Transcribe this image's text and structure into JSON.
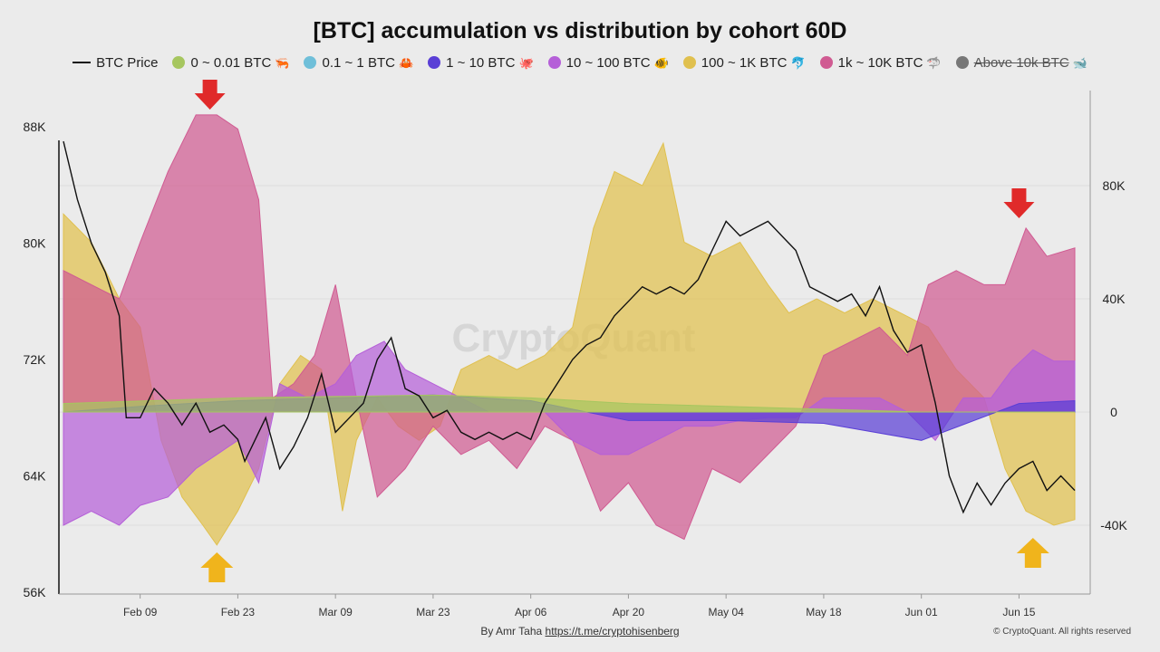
{
  "chart_data": {
    "type": "area",
    "title": "[BTC] accumulation vs distribution by cohort 60D",
    "xlabel": "",
    "ylabel_left": "",
    "ylabel_right": "",
    "x_ticks": [
      "Feb 09",
      "Feb 23",
      "Mar 09",
      "Mar 23",
      "Apr 06",
      "Apr 20",
      "May 04",
      "May 18",
      "Jun 01",
      "Jun 15"
    ],
    "x_range": [
      "2025-01-29",
      "2025-06-23"
    ],
    "y_left_ticks": [
      "88K",
      "80K",
      "72K",
      "64K",
      "56K"
    ],
    "y_left_range": [
      56000,
      88000
    ],
    "y_right_ticks": [
      "80K",
      "40K",
      "0",
      "-40K"
    ],
    "y_right_range": [
      -52000,
      88000
    ],
    "grid": "horizontal",
    "legend_position": "top",
    "watermark": "CryptoQuant",
    "price_series": {
      "name": "BTC Price",
      "color": "#111111",
      "points": [
        [
          "2025-01-29",
          87000
        ],
        [
          "2025-01-31",
          83000
        ],
        [
          "2025-02-02",
          80000
        ],
        [
          "2025-02-04",
          78000
        ],
        [
          "2025-02-06",
          75000
        ],
        [
          "2025-02-07",
          68000
        ],
        [
          "2025-02-09",
          68000
        ],
        [
          "2025-02-11",
          70000
        ],
        [
          "2025-02-13",
          69000
        ],
        [
          "2025-02-15",
          67500
        ],
        [
          "2025-02-17",
          69000
        ],
        [
          "2025-02-19",
          67000
        ],
        [
          "2025-02-21",
          67500
        ],
        [
          "2025-02-23",
          66500
        ],
        [
          "2025-02-24",
          65000
        ],
        [
          "2025-02-25",
          66000
        ],
        [
          "2025-02-27",
          68000
        ],
        [
          "2025-03-01",
          64500
        ],
        [
          "2025-03-03",
          66000
        ],
        [
          "2025-03-05",
          68000
        ],
        [
          "2025-03-07",
          71000
        ],
        [
          "2025-03-09",
          67000
        ],
        [
          "2025-03-11",
          68000
        ],
        [
          "2025-03-13",
          69000
        ],
        [
          "2025-03-15",
          72000
        ],
        [
          "2025-03-17",
          73500
        ],
        [
          "2025-03-19",
          70000
        ],
        [
          "2025-03-21",
          69500
        ],
        [
          "2025-03-23",
          68000
        ],
        [
          "2025-03-25",
          68500
        ],
        [
          "2025-03-27",
          67000
        ],
        [
          "2025-03-29",
          66500
        ],
        [
          "2025-03-31",
          67000
        ],
        [
          "2025-04-02",
          66500
        ],
        [
          "2025-04-04",
          67000
        ],
        [
          "2025-04-06",
          66500
        ],
        [
          "2025-04-08",
          69000
        ],
        [
          "2025-04-10",
          70500
        ],
        [
          "2025-04-12",
          72000
        ],
        [
          "2025-04-14",
          73000
        ],
        [
          "2025-04-16",
          73500
        ],
        [
          "2025-04-18",
          75000
        ],
        [
          "2025-04-20",
          76000
        ],
        [
          "2025-04-22",
          77000
        ],
        [
          "2025-04-24",
          76500
        ],
        [
          "2025-04-26",
          77000
        ],
        [
          "2025-04-28",
          76500
        ],
        [
          "2025-04-30",
          77500
        ],
        [
          "2025-05-02",
          79500
        ],
        [
          "2025-05-04",
          81500
        ],
        [
          "2025-05-06",
          80500
        ],
        [
          "2025-05-08",
          81000
        ],
        [
          "2025-05-10",
          81500
        ],
        [
          "2025-05-12",
          80500
        ],
        [
          "2025-05-14",
          79500
        ],
        [
          "2025-05-16",
          77000
        ],
        [
          "2025-05-18",
          76500
        ],
        [
          "2025-05-20",
          76000
        ],
        [
          "2025-05-22",
          76500
        ],
        [
          "2025-05-24",
          75000
        ],
        [
          "2025-05-26",
          77000
        ],
        [
          "2025-05-28",
          74000
        ],
        [
          "2025-05-30",
          72500
        ],
        [
          "2025-06-01",
          73000
        ],
        [
          "2025-06-03",
          69000
        ],
        [
          "2025-06-05",
          64000
        ],
        [
          "2025-06-07",
          61500
        ],
        [
          "2025-06-09",
          63500
        ],
        [
          "2025-06-11",
          62000
        ],
        [
          "2025-06-13",
          63500
        ],
        [
          "2025-06-15",
          64500
        ],
        [
          "2025-06-17",
          65000
        ],
        [
          "2025-06-19",
          63000
        ],
        [
          "2025-06-21",
          64000
        ],
        [
          "2025-06-23",
          63000
        ]
      ]
    },
    "series": [
      {
        "name": "100 ~ 1K BTC",
        "color": "#e0c04e",
        "points": [
          [
            "2025-01-29",
            70000
          ],
          [
            "2025-02-02",
            60000
          ],
          [
            "2025-02-06",
            40000
          ],
          [
            "2025-02-09",
            30000
          ],
          [
            "2025-02-12",
            -10000
          ],
          [
            "2025-02-15",
            -30000
          ],
          [
            "2025-02-18",
            -40000
          ],
          [
            "2025-02-20",
            -47000
          ],
          [
            "2025-02-23",
            -35000
          ],
          [
            "2025-02-26",
            -20000
          ],
          [
            "2025-03-01",
            10000
          ],
          [
            "2025-03-04",
            20000
          ],
          [
            "2025-03-07",
            15000
          ],
          [
            "2025-03-10",
            -35000
          ],
          [
            "2025-03-12",
            -10000
          ],
          [
            "2025-03-15",
            5000
          ],
          [
            "2025-03-18",
            -5000
          ],
          [
            "2025-03-21",
            -10000
          ],
          [
            "2025-03-24",
            -5000
          ],
          [
            "2025-03-27",
            15000
          ],
          [
            "2025-03-31",
            20000
          ],
          [
            "2025-04-04",
            15000
          ],
          [
            "2025-04-08",
            20000
          ],
          [
            "2025-04-12",
            30000
          ],
          [
            "2025-04-15",
            65000
          ],
          [
            "2025-04-18",
            85000
          ],
          [
            "2025-04-22",
            80000
          ],
          [
            "2025-04-25",
            95000
          ],
          [
            "2025-04-28",
            60000
          ],
          [
            "2025-05-02",
            55000
          ],
          [
            "2025-05-06",
            60000
          ],
          [
            "2025-05-10",
            45000
          ],
          [
            "2025-05-13",
            35000
          ],
          [
            "2025-05-17",
            40000
          ],
          [
            "2025-05-21",
            35000
          ],
          [
            "2025-05-25",
            40000
          ],
          [
            "2025-05-29",
            35000
          ],
          [
            "2025-06-02",
            30000
          ],
          [
            "2025-06-06",
            15000
          ],
          [
            "2025-06-10",
            5000
          ],
          [
            "2025-06-13",
            -20000
          ],
          [
            "2025-06-16",
            -35000
          ],
          [
            "2025-06-20",
            -40000
          ],
          [
            "2025-06-23",
            -38000
          ]
        ]
      },
      {
        "name": "1k ~ 10K BTC",
        "color": "#d05b92",
        "points": [
          [
            "2025-01-29",
            50000
          ],
          [
            "2025-02-02",
            45000
          ],
          [
            "2025-02-06",
            40000
          ],
          [
            "2025-02-09",
            60000
          ],
          [
            "2025-02-13",
            85000
          ],
          [
            "2025-02-17",
            105000
          ],
          [
            "2025-02-20",
            105000
          ],
          [
            "2025-02-23",
            100000
          ],
          [
            "2025-02-26",
            75000
          ],
          [
            "2025-02-28",
            5000
          ],
          [
            "2025-03-03",
            10000
          ],
          [
            "2025-03-06",
            20000
          ],
          [
            "2025-03-09",
            45000
          ],
          [
            "2025-03-12",
            5000
          ],
          [
            "2025-03-15",
            -30000
          ],
          [
            "2025-03-19",
            -20000
          ],
          [
            "2025-03-23",
            -5000
          ],
          [
            "2025-03-27",
            -15000
          ],
          [
            "2025-03-31",
            -10000
          ],
          [
            "2025-04-04",
            -20000
          ],
          [
            "2025-04-08",
            -5000
          ],
          [
            "2025-04-12",
            -10000
          ],
          [
            "2025-04-16",
            -35000
          ],
          [
            "2025-04-20",
            -25000
          ],
          [
            "2025-04-24",
            -40000
          ],
          [
            "2025-04-28",
            -45000
          ],
          [
            "2025-05-02",
            -20000
          ],
          [
            "2025-05-06",
            -25000
          ],
          [
            "2025-05-10",
            -15000
          ],
          [
            "2025-05-14",
            -5000
          ],
          [
            "2025-05-18",
            20000
          ],
          [
            "2025-05-22",
            25000
          ],
          [
            "2025-05-26",
            30000
          ],
          [
            "2025-05-30",
            20000
          ],
          [
            "2025-06-02",
            45000
          ],
          [
            "2025-06-06",
            50000
          ],
          [
            "2025-06-10",
            45000
          ],
          [
            "2025-06-13",
            45000
          ],
          [
            "2025-06-16",
            65000
          ],
          [
            "2025-06-19",
            55000
          ],
          [
            "2025-06-23",
            58000
          ]
        ]
      },
      {
        "name": "10 ~ 100 BTC",
        "color": "#b55fd8",
        "points": [
          [
            "2025-01-29",
            -40000
          ],
          [
            "2025-02-02",
            -35000
          ],
          [
            "2025-02-06",
            -40000
          ],
          [
            "2025-02-09",
            -33000
          ],
          [
            "2025-02-13",
            -30000
          ],
          [
            "2025-02-17",
            -20000
          ],
          [
            "2025-02-20",
            -15000
          ],
          [
            "2025-02-23",
            -10000
          ],
          [
            "2025-02-26",
            -25000
          ],
          [
            "2025-03-01",
            10000
          ],
          [
            "2025-03-05",
            5000
          ],
          [
            "2025-03-09",
            10000
          ],
          [
            "2025-03-12",
            20000
          ],
          [
            "2025-03-16",
            25000
          ],
          [
            "2025-03-19",
            15000
          ],
          [
            "2025-03-23",
            10000
          ],
          [
            "2025-03-27",
            5000
          ],
          [
            "2025-03-31",
            0
          ],
          [
            "2025-04-04",
            0
          ],
          [
            "2025-04-08",
            0
          ],
          [
            "2025-04-12",
            -10000
          ],
          [
            "2025-04-16",
            -15000
          ],
          [
            "2025-04-20",
            -15000
          ],
          [
            "2025-04-24",
            -10000
          ],
          [
            "2025-04-28",
            -5000
          ],
          [
            "2025-05-02",
            -5000
          ],
          [
            "2025-05-06",
            -3000
          ],
          [
            "2025-05-10",
            -2000
          ],
          [
            "2025-05-14",
            -2000
          ],
          [
            "2025-05-18",
            5000
          ],
          [
            "2025-05-22",
            5000
          ],
          [
            "2025-05-26",
            5000
          ],
          [
            "2025-05-30",
            0
          ],
          [
            "2025-06-03",
            -10000
          ],
          [
            "2025-06-07",
            5000
          ],
          [
            "2025-06-11",
            5000
          ],
          [
            "2025-06-14",
            15000
          ],
          [
            "2025-06-17",
            22000
          ],
          [
            "2025-06-20",
            18000
          ],
          [
            "2025-06-23",
            18000
          ]
        ]
      },
      {
        "name": "1 ~ 10 BTC",
        "color": "#5a3fd6",
        "points": [
          [
            "2025-01-29",
            0
          ],
          [
            "2025-02-09",
            2000
          ],
          [
            "2025-02-23",
            4000
          ],
          [
            "2025-03-09",
            5000
          ],
          [
            "2025-03-23",
            6000
          ],
          [
            "2025-04-06",
            4000
          ],
          [
            "2025-04-20",
            -3000
          ],
          [
            "2025-05-04",
            -3000
          ],
          [
            "2025-05-18",
            -4000
          ],
          [
            "2025-06-01",
            -10000
          ],
          [
            "2025-06-15",
            3000
          ],
          [
            "2025-06-23",
            4000
          ]
        ]
      },
      {
        "name": "0 ~ 0.01 BTC",
        "color": "#a6c65f",
        "points": [
          [
            "2025-01-29",
            3000
          ],
          [
            "2025-02-23",
            5000
          ],
          [
            "2025-03-23",
            6000
          ],
          [
            "2025-04-06",
            5000
          ],
          [
            "2025-04-20",
            3000
          ],
          [
            "2025-05-04",
            2000
          ],
          [
            "2025-05-18",
            1000
          ],
          [
            "2025-06-01",
            0
          ],
          [
            "2025-06-23",
            0
          ]
        ]
      }
    ],
    "legend": [
      {
        "label": "BTC Price",
        "color": "#111111",
        "marker": "line",
        "icon": ""
      },
      {
        "label": "0 ~ 0.01 BTC",
        "color": "#a6c65f",
        "marker": "dot",
        "icon": "shrimp-icon"
      },
      {
        "label": "0.1 ~ 1 BTC",
        "color": "#6fbfd9",
        "marker": "dot",
        "icon": "crab-icon"
      },
      {
        "label": "1 ~ 10 BTC",
        "color": "#5a3fd6",
        "marker": "dot",
        "icon": "octopus-icon"
      },
      {
        "label": "10 ~ 100 BTC",
        "color": "#b55fd8",
        "marker": "dot",
        "icon": "fish-icon"
      },
      {
        "label": "100 ~ 1K BTC",
        "color": "#e0c04e",
        "marker": "dot",
        "icon": "dolphin-icon"
      },
      {
        "label": "1k ~ 10K BTC",
        "color": "#d05b92",
        "marker": "dot",
        "icon": "shark-icon"
      },
      {
        "label": "Above 10k BTC",
        "color": "#777777",
        "marker": "dot",
        "icon": "whale-icon",
        "disabled": true
      }
    ],
    "annotations": [
      {
        "type": "arrow-down",
        "color": "#e02a2a",
        "date": "2025-02-19"
      },
      {
        "type": "arrow-up",
        "color": "#f0b41c",
        "date": "2025-02-20"
      },
      {
        "type": "arrow-down",
        "color": "#e02a2a",
        "date": "2025-06-15"
      },
      {
        "type": "arrow-up",
        "color": "#f0b41c",
        "date": "2025-06-17"
      }
    ]
  },
  "footer": {
    "credit": "By Amr Taha ",
    "link": "https://t.me/cryptohisenberg",
    "copyright": "© CryptoQuant. All rights reserved"
  }
}
